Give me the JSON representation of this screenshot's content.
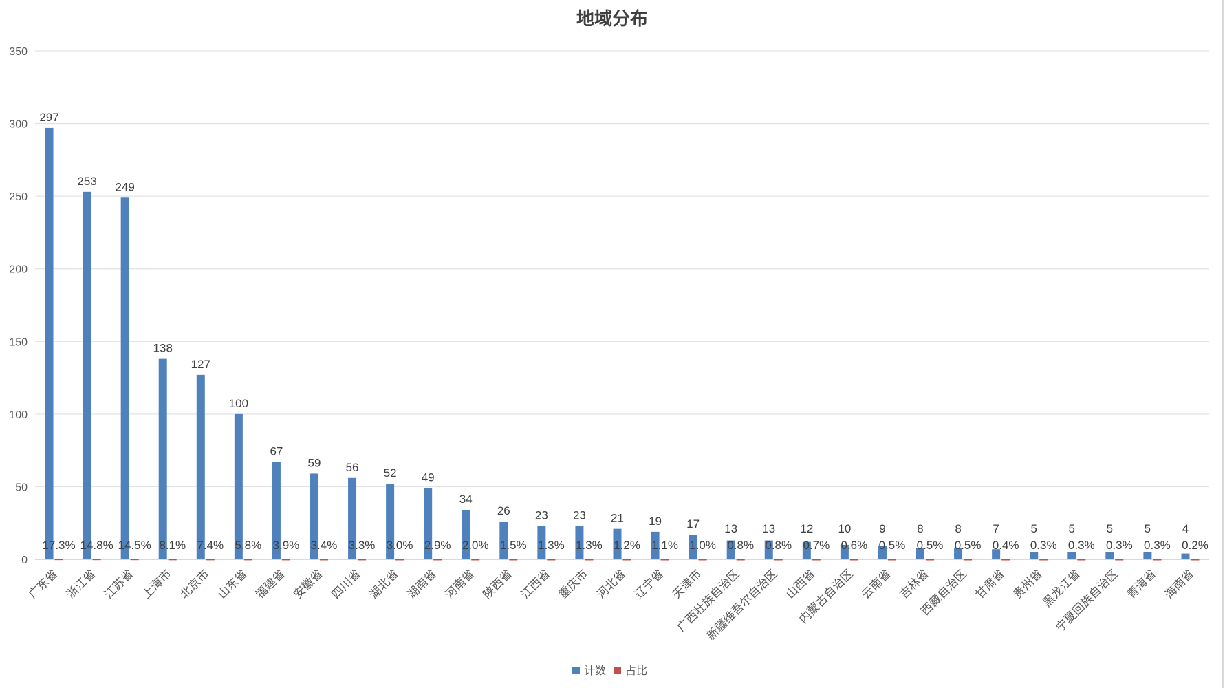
{
  "chart_data": {
    "type": "bar",
    "title": "地域分布",
    "categories": [
      "广东省",
      "浙江省",
      "江苏省",
      "上海市",
      "北京市",
      "山东省",
      "福建省",
      "安徽省",
      "四川省",
      "湖北省",
      "湖南省",
      "河南省",
      "陕西省",
      "江西省",
      "重庆市",
      "河北省",
      "辽宁省",
      "天津市",
      "广西壮族自治区",
      "新疆维吾尔自治区",
      "山西省",
      "内蒙古自治区",
      "云南省",
      "吉林省",
      "西藏自治区",
      "甘肃省",
      "贵州省",
      "黑龙江省",
      "宁夏回族自治区",
      "青海省",
      "海南省"
    ],
    "series": [
      {
        "name": "计数",
        "color": "#4f81bd",
        "values": [
          297,
          253,
          249,
          138,
          127,
          100,
          67,
          59,
          56,
          52,
          49,
          34,
          26,
          23,
          23,
          21,
          19,
          17,
          13,
          13,
          12,
          10,
          9,
          8,
          8,
          7,
          5,
          5,
          5,
          5,
          4
        ],
        "labels": [
          "297",
          "253",
          "249",
          "138",
          "127",
          "100",
          "67",
          "59",
          "56",
          "52",
          "49",
          "34",
          "26",
          "23",
          "23",
          "21",
          "19",
          "17",
          "13",
          "13",
          "12",
          "10",
          "9",
          "8",
          "8",
          "7",
          "5",
          "5",
          "5",
          "5",
          "4"
        ]
      },
      {
        "name": "占比",
        "color": "#c0504d",
        "values": [
          0.173,
          0.148,
          0.145,
          0.081,
          0.074,
          0.058,
          0.039,
          0.034,
          0.033,
          0.03,
          0.029,
          0.02,
          0.015,
          0.013,
          0.013,
          0.012,
          0.011,
          0.01,
          0.008,
          0.008,
          0.007,
          0.006,
          0.005,
          0.005,
          0.005,
          0.004,
          0.003,
          0.003,
          0.003,
          0.003,
          0.002
        ],
        "labels": [
          "17.3%",
          "14.8%",
          "14.5%",
          "8.1%",
          "7.4%",
          "5.8%",
          "3.9%",
          "3.4%",
          "3.3%",
          "3.0%",
          "2.9%",
          "2.0%",
          "1.5%",
          "1.3%",
          "1.3%",
          "1.2%",
          "1.1%",
          "1.0%",
          "0.8%",
          "0.8%",
          "0.7%",
          "0.6%",
          "0.5%",
          "0.5%",
          "0.5%",
          "0.4%",
          "0.3%",
          "0.3%",
          "0.3%",
          "0.3%",
          "0.2%"
        ]
      }
    ],
    "yticks": [
      "0",
      "50",
      "100",
      "150",
      "200",
      "250",
      "300",
      "350"
    ],
    "ylim": [
      0,
      350
    ],
    "grid": true,
    "legend": "bottom"
  }
}
